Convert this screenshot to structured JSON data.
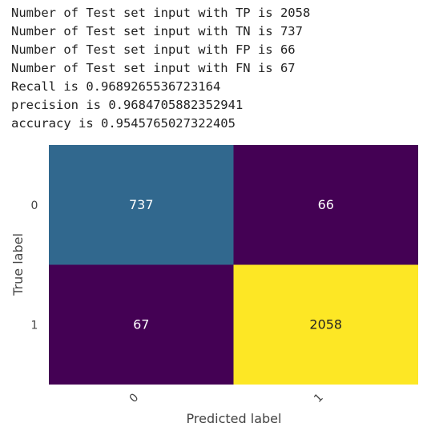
{
  "output_lines": [
    "Number of Test set input with TP is 2058",
    "Number of Test set input with TN is 737",
    "Number of Test set input with FP is 66",
    "Number of Test set input with FN is 67",
    "Recall is 0.9689265536723164",
    "precision is 0.9684705882352941",
    "accuracy is 0.9545765027322405"
  ],
  "chart_data": {
    "type": "heatmap",
    "title": "",
    "xlabel": "Predicted label",
    "ylabel": "True label",
    "x_ticks": [
      "0",
      "1"
    ],
    "y_ticks": [
      "0",
      "1"
    ],
    "values": [
      [
        737,
        66
      ],
      [
        67,
        2058
      ]
    ],
    "colormap": "viridis",
    "colors": {
      "cell_0_0": "#31688e",
      "cell_0_1": "#440154",
      "cell_1_0": "#440154",
      "cell_1_1": "#fde725"
    },
    "annotation_colors": {
      "dark_bg": "#ffffff",
      "light_bg": "#222222"
    },
    "grid": false,
    "colorbar": false
  }
}
